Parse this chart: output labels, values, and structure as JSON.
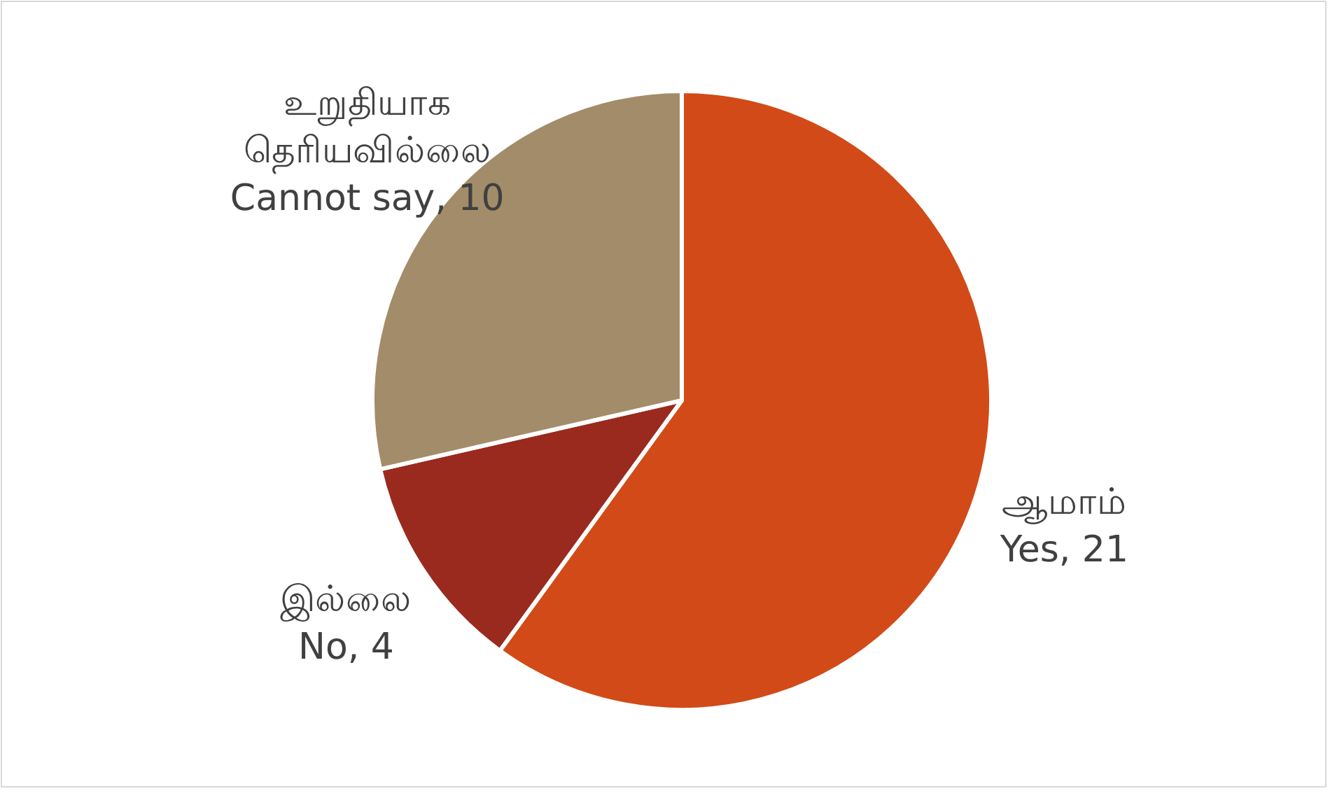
{
  "chart_data": {
    "type": "pie",
    "categories": [
      "ஆமாம்\nYes",
      "இல்லை\nNo",
      "உறுதியாக\nதெரியவில்லை\nCannot say"
    ],
    "values": [
      21,
      4,
      10
    ],
    "colors": [
      "#d24a17",
      "#9a2a1d",
      "#a38c69"
    ],
    "value_labels": [
      ", 21",
      ", 4",
      ", 10"
    ]
  }
}
